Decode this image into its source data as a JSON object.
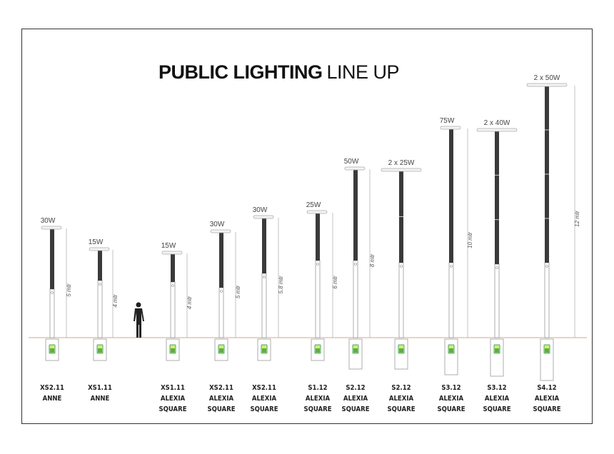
{
  "title": {
    "bold": "PUBLIC LIGHTING",
    "light": "LINE UP"
  },
  "poles": [
    {
      "wattage": "30W",
      "height": "5 mtr",
      "model": [
        "XS2.11",
        "ANNE"
      ]
    },
    {
      "wattage": "15W",
      "height": "4 mtr",
      "model": [
        "XS1.11",
        "ANNE"
      ]
    },
    {
      "wattage": "15W",
      "height": "4 mtr",
      "model": [
        "XS1.11",
        "ALEXIA",
        "SQUARE"
      ]
    },
    {
      "wattage": "30W",
      "height": "5 mtr",
      "model": [
        "XS2.11",
        "ALEXIA",
        "SQUARE"
      ]
    },
    {
      "wattage": "30W",
      "height": "5.8 mtr",
      "model": [
        "XS2.11",
        "ALEXIA",
        "SQUARE"
      ]
    },
    {
      "wattage": "25W",
      "height": "6 mtr",
      "model": [
        "S1.12",
        "ALEXIA",
        "SQUARE"
      ]
    },
    {
      "wattage": "50W",
      "height": "8 mtr",
      "model": [
        "S2.12",
        "ALEXIA",
        "SQUARE"
      ]
    },
    {
      "wattage": "2 x 25W",
      "model": [
        "S2.12",
        "ALEXIA",
        "SQUARE"
      ]
    },
    {
      "wattage": "75W",
      "height": "10 mtr",
      "model": [
        "S3.12",
        "ALEXIA",
        "SQUARE"
      ]
    },
    {
      "wattage": "2 x 40W",
      "model": [
        "S3.12",
        "ALEXIA",
        "SQUARE"
      ]
    },
    {
      "wattage": "2 x 50W",
      "height": "12 mtr",
      "model": [
        "S4.12",
        "ALEXIA",
        "SQUARE"
      ]
    }
  ]
}
